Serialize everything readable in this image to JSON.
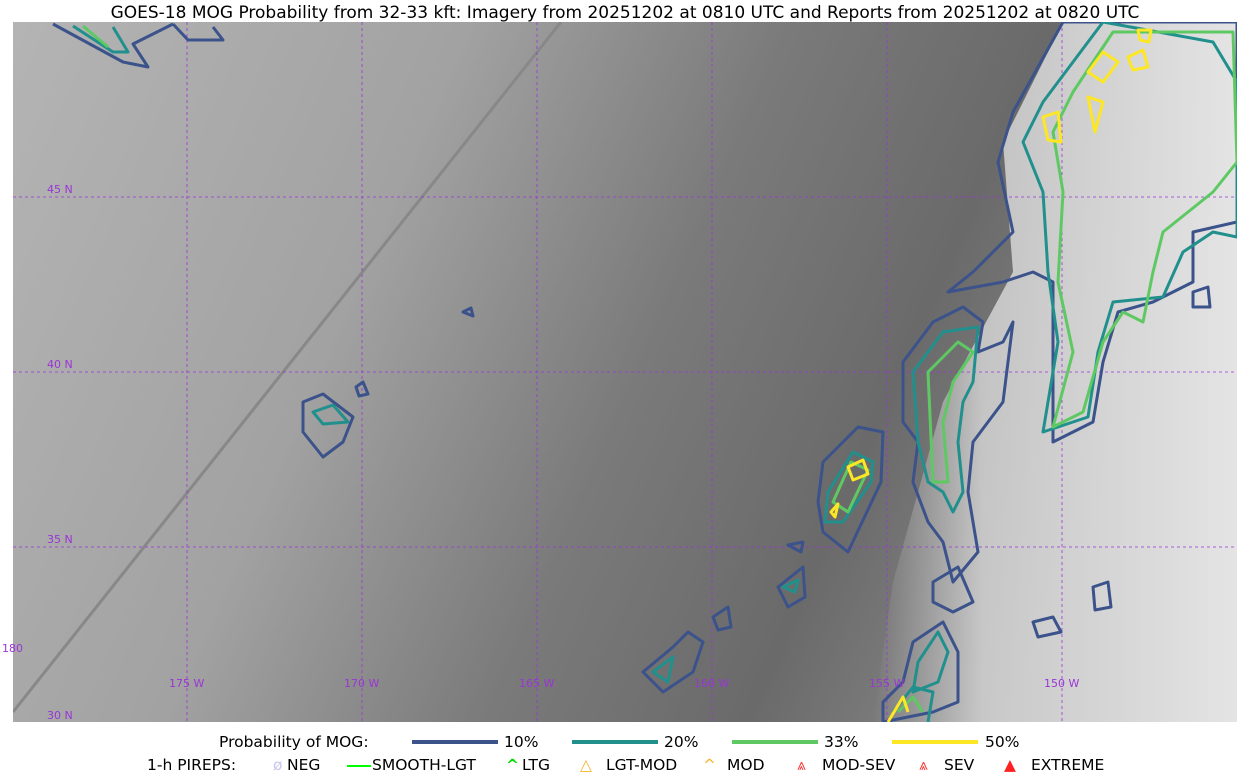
{
  "title": "GOES-18 MOG Probability from 32-33 kft: Imagery from 20251202 at 0810 UTC and Reports from 20251202 at 0820 UTC",
  "map": {
    "lat_labels": [
      "45 N",
      "40 N",
      "35 N",
      "30 N"
    ],
    "lon_labels": [
      "175 W",
      "170 W",
      "165 W",
      "160 W",
      "155 W",
      "150 W"
    ],
    "dateline_label": "180",
    "contour_colors": {
      "10%": "#3b528b",
      "20%": "#21908d",
      "33%": "#5ec962",
      "50%": "#fde725"
    },
    "grid_color": "#9a35d6"
  },
  "legend": {
    "probability_label": "Probability of MOG:",
    "levels": [
      {
        "label": "10%",
        "color": "#3b528b"
      },
      {
        "label": "20%",
        "color": "#21908d"
      },
      {
        "label": "33%",
        "color": "#5ec962"
      },
      {
        "label": "50%",
        "color": "#fde725"
      }
    ],
    "pireps_label": "1-h PIREPS:",
    "pireps": [
      {
        "label": "NEG",
        "icon": "neg-icon",
        "color": "#c8c8f0"
      },
      {
        "label": "SMOOTH-LGT",
        "icon": "line-icon",
        "color": "#00ff00"
      },
      {
        "label": "LTG",
        "icon": "caret-icon",
        "color": "#00dd00"
      },
      {
        "label": "LGT-MOD",
        "icon": "triangle-icon",
        "color": "#f7b32b"
      },
      {
        "label": "MOD",
        "icon": "caret-icon",
        "color": "#f7b32b"
      },
      {
        "label": "MOD-SEV",
        "icon": "double-triangle-icon",
        "color": "#ff3030"
      },
      {
        "label": "SEV",
        "icon": "double-caret-icon",
        "color": "#ff3030"
      },
      {
        "label": "EXTREME",
        "icon": "filled-triangle-icon",
        "color": "#ff2020"
      }
    ]
  }
}
